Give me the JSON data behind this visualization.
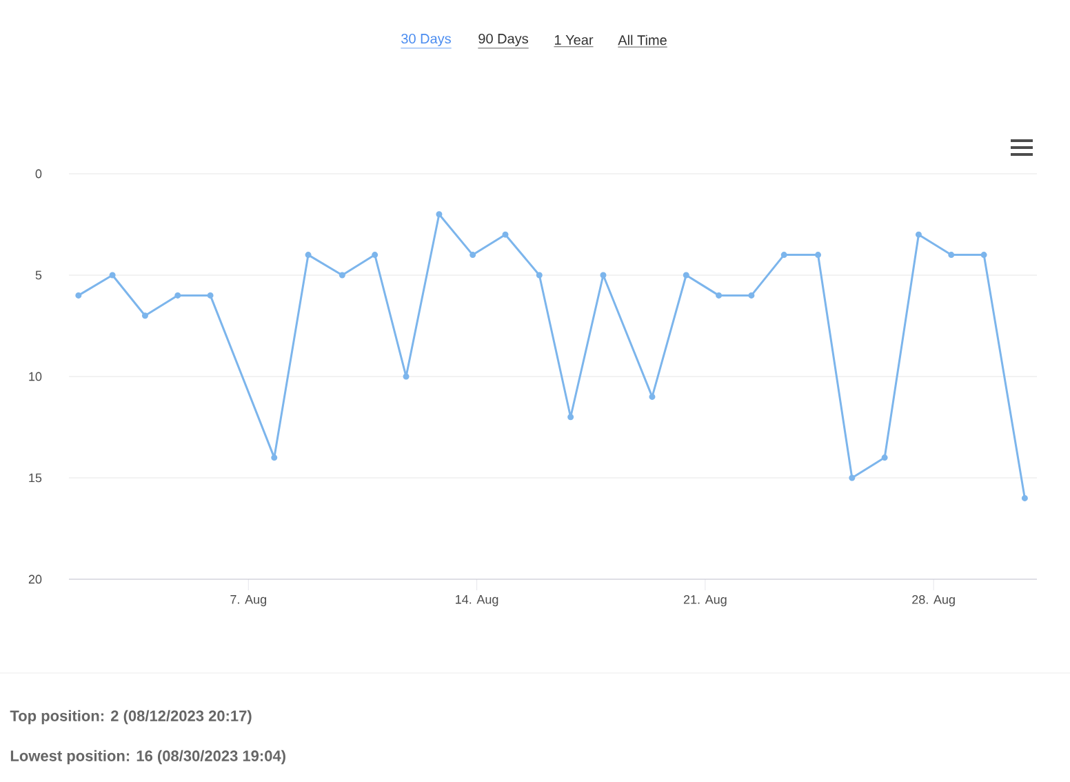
{
  "chart_data": {
    "type": "line",
    "annotations": [
      "30 Days",
      "90 Days",
      "1 Year",
      "All Time",
      "Top position: 2 (08/12/2023 20:17)",
      "Lowest position: 16 (08/30/2023 19:04)"
    ],
    "x": [
      "2023-08-01T19:00",
      "2023-08-02T20:00",
      "2023-08-03T20:00",
      "2023-08-04T20:00",
      "2023-08-05T20:00",
      "2023-08-07T19:00",
      "2023-08-08T20:00",
      "2023-08-09T21:00",
      "2023-08-10T21:00",
      "2023-08-11T20:00",
      "2023-08-12T20:17",
      "2023-08-13T21:00",
      "2023-08-14T21:00",
      "2023-08-15T22:00",
      "2023-08-16T21:00",
      "2023-08-17T21:00",
      "2023-08-19T09:00",
      "2023-08-20T10:00",
      "2023-08-21T10:00",
      "2023-08-22T10:00",
      "2023-08-23T10:00",
      "2023-08-24T11:00",
      "2023-08-25T12:00",
      "2023-08-26T12:00",
      "2023-08-27T13:00",
      "2023-08-28T13:00",
      "2023-08-29T13:00",
      "2023-08-30T19:04"
    ],
    "series": [
      {
        "color": "#7cb5ec",
        "values": [
          6,
          5,
          7,
          6,
          6,
          14,
          4,
          5,
          4,
          10,
          2,
          4,
          3,
          5,
          12,
          5,
          11,
          5,
          6,
          6,
          4,
          4,
          15,
          14,
          3,
          4,
          4,
          16
        ]
      }
    ],
    "xlim": [
      "2023-08-01T12:00",
      "2023-08-31T04:00"
    ],
    "xticks": [
      {
        "value": "2023-08-07",
        "label": "7. Aug"
      },
      {
        "value": "2023-08-14",
        "label": "14. Aug"
      },
      {
        "value": "2023-08-21",
        "label": "21. Aug"
      },
      {
        "value": "2023-08-28",
        "label": "28. Aug"
      }
    ],
    "ylim": [
      20,
      0
    ],
    "yticks": [
      0,
      5,
      10,
      15,
      20
    ],
    "grid": "y",
    "marker": "circle",
    "line_style": "solid"
  }
}
